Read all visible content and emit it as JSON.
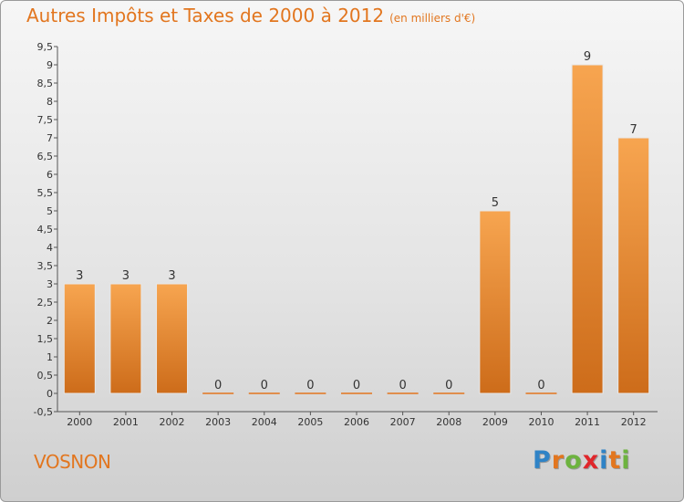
{
  "title": "Autres Impôts et Taxes de 2000 à 2012",
  "title_unit": "(en milliers d'€)",
  "commune": "VOSNON",
  "logo": {
    "letters": [
      "P",
      "r",
      "o",
      "x",
      "i",
      "t",
      "i"
    ],
    "colors": [
      "#2f83c6",
      "#e2761f",
      "#6db33f",
      "#e0262b",
      "#2f83c6",
      "#e2761f",
      "#6db33f"
    ]
  },
  "colors": {
    "accent": "#e2761f",
    "bar_top": "#f7a550",
    "bar_bottom": "#cd6c1a"
  },
  "chart_data": {
    "type": "bar",
    "categories": [
      "2000",
      "2001",
      "2002",
      "2003",
      "2004",
      "2005",
      "2006",
      "2007",
      "2008",
      "2009",
      "2010",
      "2011",
      "2012"
    ],
    "values": [
      3,
      3,
      3,
      0,
      0,
      0,
      0,
      0,
      0,
      5,
      0,
      9,
      7
    ],
    "data_labels": [
      "3",
      "3",
      "3",
      "0",
      "0",
      "0",
      "0",
      "0",
      "0",
      "5",
      "0",
      "9",
      "7"
    ],
    "ylim": [
      -0.5,
      9.5
    ],
    "yticks": [
      "-0,5",
      "0",
      "0,5",
      "1",
      "1,5",
      "2",
      "2,5",
      "3",
      "3,5",
      "4",
      "4,5",
      "5",
      "5,5",
      "6",
      "6,5",
      "7",
      "7,5",
      "8",
      "8,5",
      "9",
      "9,5"
    ],
    "ytick_values": [
      -0.5,
      0,
      0.5,
      1,
      1.5,
      2,
      2.5,
      3,
      3.5,
      4,
      4.5,
      5,
      5.5,
      6,
      6.5,
      7,
      7.5,
      8,
      8.5,
      9,
      9.5
    ],
    "grid": false,
    "xlabel": "",
    "ylabel": ""
  }
}
